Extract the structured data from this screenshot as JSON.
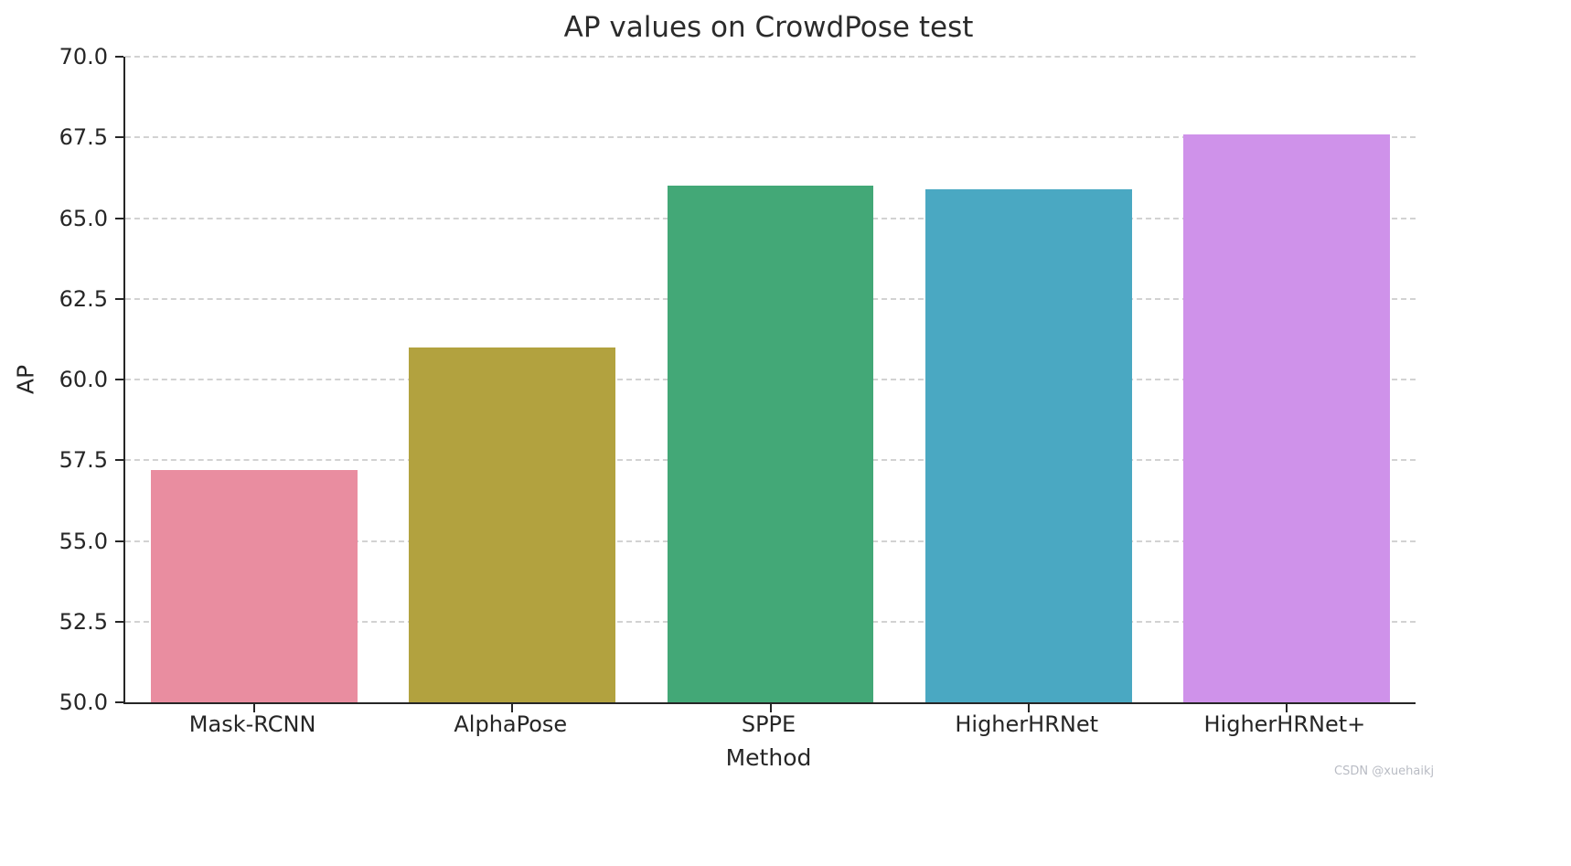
{
  "chart_data": {
    "type": "bar",
    "title": "AP values on CrowdPose test",
    "xlabel": "Method",
    "ylabel": "AP",
    "categories": [
      "Mask-RCNN",
      "AlphaPose",
      "SPPE",
      "HigherHRNet",
      "HigherHRNet+"
    ],
    "values": [
      57.2,
      61.0,
      66.0,
      65.9,
      67.6
    ],
    "colors": [
      "#e98da0",
      "#b2a23f",
      "#43a877",
      "#4aa8c2",
      "#cf92ea"
    ],
    "ylim": [
      50,
      70
    ],
    "ytick_labels": [
      "50.0",
      "52.5",
      "55.0",
      "57.5",
      "60.0",
      "62.5",
      "65.0",
      "67.5",
      "70.0"
    ],
    "grid": "horizontal-dashed",
    "legend": "none",
    "bar_width_fraction": 0.8
  },
  "watermark": "CSDN @xuehaikj"
}
